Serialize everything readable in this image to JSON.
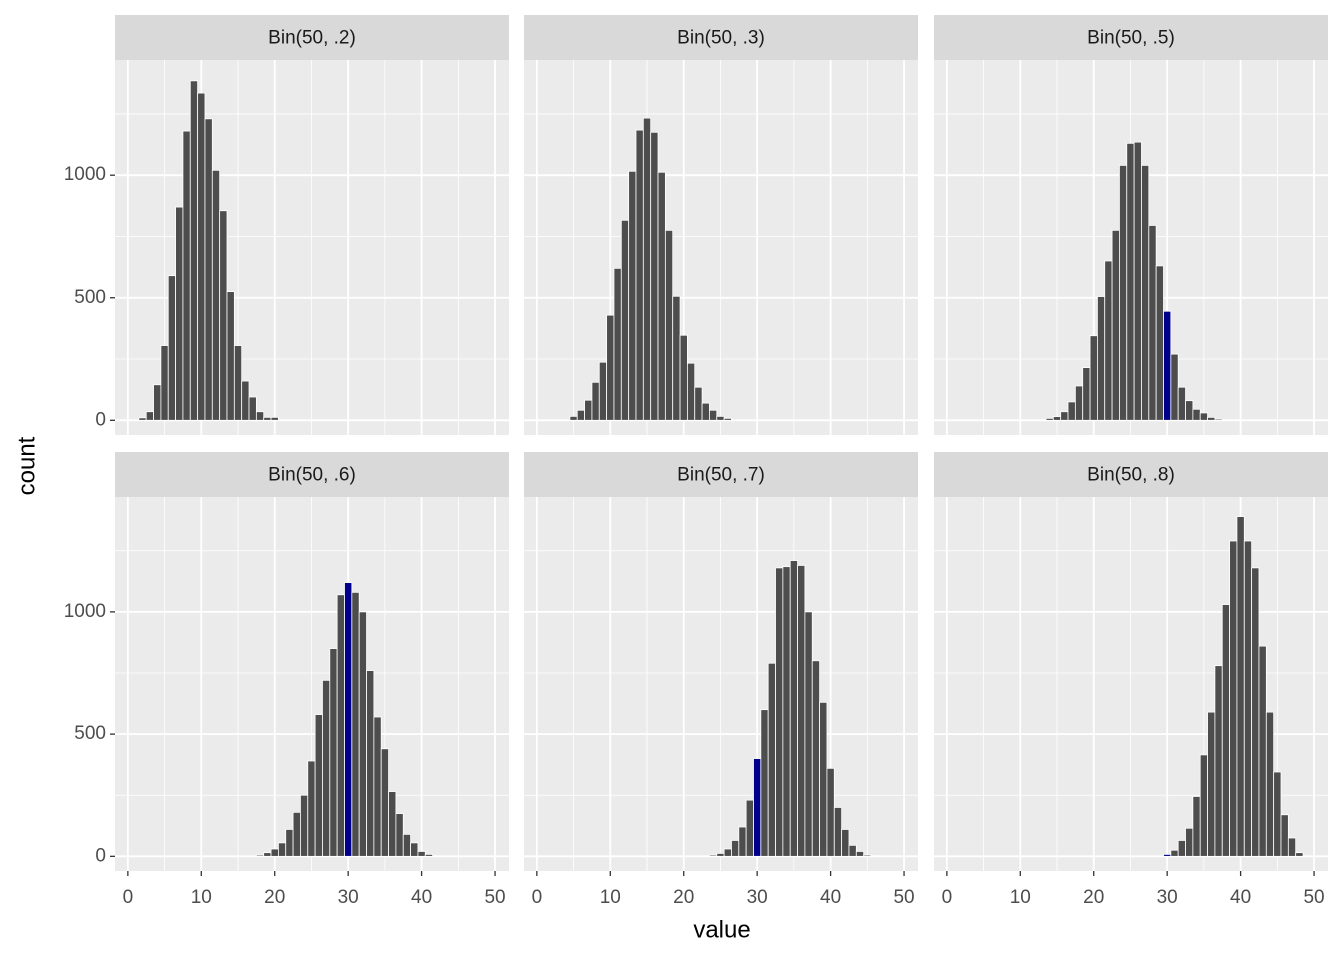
{
  "chart_data": [
    {
      "type": "bar",
      "title": "Bin(50, .2)",
      "x": [
        2,
        3,
        4,
        5,
        6,
        7,
        8,
        9,
        10,
        11,
        12,
        13,
        14,
        15,
        16,
        17,
        18,
        19,
        20
      ],
      "values": [
        10,
        35,
        145,
        305,
        590,
        870,
        1180,
        1385,
        1335,
        1230,
        1020,
        855,
        525,
        305,
        160,
        95,
        35,
        12,
        12
      ],
      "color": "#4d4d4d",
      "highlight_x": 30,
      "highlight_color": "#00008b",
      "xlim": [
        -1.75,
        51.9
      ],
      "ylim": [
        -60,
        1470
      ],
      "xticks": [
        0,
        10,
        20,
        30,
        40,
        50
      ],
      "yticks": [
        0,
        500,
        1000
      ],
      "grid": true
    },
    {
      "type": "bar",
      "title": "Bin(50, .3)",
      "x": [
        5,
        6,
        7,
        8,
        9,
        10,
        11,
        12,
        13,
        14,
        15,
        16,
        17,
        18,
        19,
        20,
        21,
        22,
        23,
        24,
        25,
        26
      ],
      "values": [
        16,
        41,
        82,
        155,
        237,
        429,
        620,
        816,
        1016,
        1184,
        1233,
        1175,
        1012,
        775,
        506,
        347,
        233,
        135,
        70,
        41,
        16,
        8
      ],
      "color": "#4d4d4d",
      "highlight_x": 30,
      "highlight_color": "#00008b",
      "xlim": [
        -1.75,
        51.9
      ],
      "ylim": [
        -60,
        1470
      ],
      "xticks": [
        0,
        10,
        20,
        30,
        40,
        50
      ],
      "yticks": [
        0,
        500,
        1000
      ],
      "grid": true
    },
    {
      "type": "bar",
      "title": "Bin(50, .5)",
      "x": [
        13,
        14,
        15,
        16,
        17,
        18,
        19,
        20,
        21,
        22,
        23,
        24,
        25,
        26,
        27,
        28,
        29,
        30,
        31,
        32,
        33,
        34,
        35,
        36,
        37
      ],
      "values": [
        3,
        8,
        15,
        35,
        75,
        140,
        215,
        345,
        505,
        650,
        775,
        1040,
        1130,
        1135,
        1040,
        795,
        630,
        445,
        270,
        135,
        80,
        45,
        30,
        12,
        5
      ],
      "color": "#4d4d4d",
      "highlight_x": 30,
      "highlight_color": "#00008b",
      "xlim": [
        -1.75,
        51.9
      ],
      "ylim": [
        -60,
        1470
      ],
      "xticks": [
        0,
        10,
        20,
        30,
        40,
        50
      ],
      "yticks": [
        0,
        500,
        1000
      ],
      "grid": true
    },
    {
      "type": "bar",
      "title": "Bin(50, .6)",
      "x": [
        18,
        19,
        20,
        21,
        22,
        23,
        24,
        25,
        26,
        27,
        28,
        29,
        30,
        31,
        32,
        33,
        34,
        35,
        36,
        37,
        38,
        39,
        40,
        41
      ],
      "values": [
        5,
        15,
        30,
        55,
        110,
        180,
        250,
        390,
        580,
        720,
        850,
        1070,
        1120,
        1080,
        1000,
        760,
        570,
        440,
        265,
        175,
        90,
        55,
        20,
        8
      ],
      "color": "#4d4d4d",
      "highlight_x": 30,
      "highlight_color": "#00008b",
      "xlim": [
        -1.75,
        51.9
      ],
      "ylim": [
        -60,
        1470
      ],
      "xticks": [
        0,
        10,
        20,
        30,
        40,
        50
      ],
      "yticks": [
        0,
        500,
        1000
      ],
      "grid": true
    },
    {
      "type": "bar",
      "title": "Bin(50, .7)",
      "x": [
        24,
        25,
        26,
        27,
        28,
        29,
        30,
        31,
        32,
        33,
        34,
        35,
        36,
        37,
        38,
        39,
        40,
        41,
        42,
        43,
        44,
        45,
        46
      ],
      "values": [
        5,
        12,
        30,
        65,
        120,
        230,
        400,
        600,
        790,
        1180,
        1185,
        1210,
        1190,
        1000,
        800,
        630,
        360,
        200,
        110,
        45,
        20,
        5,
        3
      ],
      "color": "#4d4d4d",
      "highlight_x": 30,
      "highlight_color": "#00008b",
      "xlim": [
        -1.75,
        51.9
      ],
      "ylim": [
        -60,
        1470
      ],
      "xticks": [
        0,
        10,
        20,
        30,
        40,
        50
      ],
      "yticks": [
        0,
        500,
        1000
      ],
      "grid": true
    },
    {
      "type": "bar",
      "title": "Bin(50, .8)",
      "x": [
        30,
        31,
        32,
        33,
        34,
        35,
        36,
        37,
        38,
        39,
        40,
        41,
        42,
        43,
        44,
        45,
        46,
        47,
        48
      ],
      "values": [
        8,
        25,
        65,
        115,
        245,
        415,
        590,
        780,
        1030,
        1290,
        1390,
        1290,
        1180,
        860,
        590,
        345,
        170,
        75,
        15
      ],
      "color": "#4d4d4d",
      "highlight_x": 30,
      "highlight_color": "#00008b",
      "xlim": [
        -1.75,
        51.9
      ],
      "ylim": [
        -60,
        1470
      ],
      "xticks": [
        0,
        10,
        20,
        30,
        40,
        50
      ],
      "yticks": [
        0,
        500,
        1000
      ],
      "grid": true
    }
  ],
  "x_label": "value",
  "y_label": "count"
}
